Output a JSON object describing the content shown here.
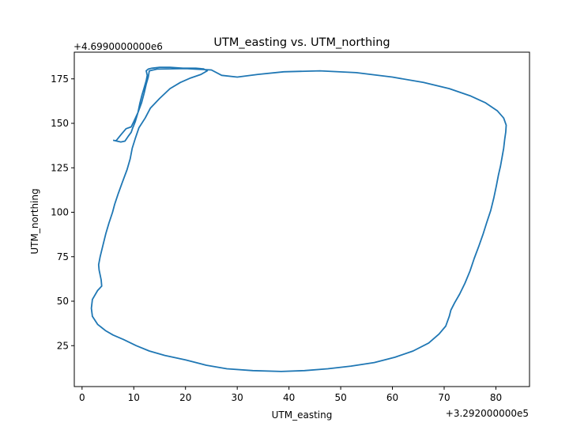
{
  "chart_data": {
    "type": "line",
    "title": "UTM_easting vs. UTM_northing",
    "xlabel": "UTM_easting",
    "ylabel": "UTM_northing",
    "x_offset_label": "+3.292000000e5",
    "y_offset_label": "+4.6990000000e6",
    "xlim": [
      -1.5,
      86.5
    ],
    "ylim": [
      2,
      190
    ],
    "x_ticks": [
      0,
      10,
      20,
      30,
      40,
      50,
      60,
      70,
      80
    ],
    "x_tick_labels": [
      "0",
      "10",
      "20",
      "30",
      "40",
      "50",
      "60",
      "70",
      "80"
    ],
    "y_ticks": [
      25,
      50,
      75,
      100,
      125,
      150,
      175
    ],
    "y_tick_labels": [
      "25",
      "50",
      "75",
      "100",
      "125",
      "150",
      "175"
    ],
    "grid": false,
    "series": [
      {
        "color": "#1f77b4",
        "points": [
          [
            6.0,
            140.5
          ],
          [
            7.5,
            139.5
          ],
          [
            8.3,
            140.0
          ],
          [
            9.0,
            143.0
          ],
          [
            9.5,
            145.0
          ],
          [
            9.8,
            147.5
          ],
          [
            10.3,
            151.0
          ],
          [
            10.8,
            156.0
          ],
          [
            11.2,
            161.5
          ],
          [
            11.6,
            166.0
          ],
          [
            12.0,
            170.0
          ],
          [
            12.4,
            174.0
          ],
          [
            12.6,
            177.0
          ],
          [
            12.4,
            179.5
          ],
          [
            12.8,
            180.5
          ],
          [
            13.5,
            181.0
          ],
          [
            15.0,
            181.5
          ],
          [
            17.0,
            181.5
          ],
          [
            19.5,
            181.0
          ],
          [
            22.0,
            181.0
          ],
          [
            23.5,
            180.6
          ],
          [
            24.2,
            179.5
          ],
          [
            23.0,
            177.5
          ],
          [
            21.0,
            175.5
          ],
          [
            19.0,
            173.0
          ],
          [
            17.0,
            169.5
          ],
          [
            15.0,
            164.0
          ],
          [
            13.2,
            158.5
          ],
          [
            12.2,
            153.0
          ],
          [
            11.0,
            147.5
          ],
          [
            10.3,
            141.5
          ],
          [
            9.7,
            136.0
          ],
          [
            9.3,
            130.0
          ],
          [
            8.7,
            124.0
          ],
          [
            7.8,
            117.0
          ],
          [
            7.0,
            110.5
          ],
          [
            6.3,
            104.5
          ],
          [
            5.9,
            100.0
          ],
          [
            5.2,
            94.0
          ],
          [
            4.6,
            88.0
          ],
          [
            4.0,
            81.0
          ],
          [
            3.5,
            75.0
          ],
          [
            3.2,
            70.5
          ],
          [
            3.3,
            67.5
          ],
          [
            3.7,
            62.0
          ],
          [
            3.8,
            58.5
          ],
          [
            3.0,
            56.0
          ],
          [
            2.0,
            51.0
          ],
          [
            1.8,
            46.0
          ],
          [
            2.0,
            41.5
          ],
          [
            3.0,
            37.0
          ],
          [
            4.5,
            33.5
          ],
          [
            6.0,
            31.0
          ],
          [
            8.0,
            28.5
          ],
          [
            10.5,
            25.0
          ],
          [
            13.0,
            22.0
          ],
          [
            16.0,
            19.5
          ],
          [
            20.0,
            17.0
          ],
          [
            24.0,
            14.0
          ],
          [
            28.0,
            12.0
          ],
          [
            33.0,
            11.0
          ],
          [
            38.5,
            10.5
          ],
          [
            43.0,
            11.0
          ],
          [
            47.5,
            12.0
          ],
          [
            52.0,
            13.5
          ],
          [
            56.5,
            15.5
          ],
          [
            60.5,
            18.5
          ],
          [
            64.0,
            22.0
          ],
          [
            67.0,
            26.5
          ],
          [
            69.0,
            31.5
          ],
          [
            70.3,
            36.0
          ],
          [
            71.0,
            41.5
          ],
          [
            71.3,
            45.0
          ],
          [
            72.0,
            49.0
          ],
          [
            73.0,
            54.0
          ],
          [
            74.0,
            60.0
          ],
          [
            75.0,
            67.0
          ],
          [
            75.8,
            74.0
          ],
          [
            76.7,
            81.0
          ],
          [
            77.5,
            87.5
          ],
          [
            78.2,
            94.0
          ],
          [
            79.0,
            101.0
          ],
          [
            79.6,
            108.0
          ],
          [
            80.1,
            115.0
          ],
          [
            80.5,
            121.0
          ],
          [
            80.9,
            126.0
          ],
          [
            81.2,
            131.0
          ],
          [
            81.5,
            136.0
          ],
          [
            81.7,
            141.0
          ],
          [
            81.9,
            145.0
          ],
          [
            82.0,
            149.0
          ],
          [
            81.5,
            153.0
          ],
          [
            80.3,
            157.0
          ],
          [
            78.0,
            161.5
          ],
          [
            75.0,
            165.5
          ],
          [
            71.0,
            169.5
          ],
          [
            66.0,
            173.0
          ],
          [
            60.0,
            176.0
          ],
          [
            53.0,
            178.5
          ],
          [
            46.0,
            179.5
          ],
          [
            39.0,
            179.0
          ],
          [
            34.0,
            177.5
          ],
          [
            30.0,
            176.0
          ],
          [
            27.0,
            177.0
          ],
          [
            25.0,
            180.0
          ],
          [
            20.0,
            180.8
          ],
          [
            14.5,
            180.5
          ],
          [
            13.0,
            179.5
          ],
          [
            12.8,
            176.0
          ],
          [
            12.4,
            172.0
          ],
          [
            12.0,
            167.0
          ],
          [
            11.5,
            161.5
          ],
          [
            10.8,
            156.0
          ],
          [
            10.0,
            151.0
          ],
          [
            9.5,
            148.0
          ],
          [
            8.5,
            147.0
          ],
          [
            7.5,
            143.5
          ],
          [
            6.8,
            141.0
          ],
          [
            6.5,
            140.0
          ]
        ]
      }
    ]
  }
}
